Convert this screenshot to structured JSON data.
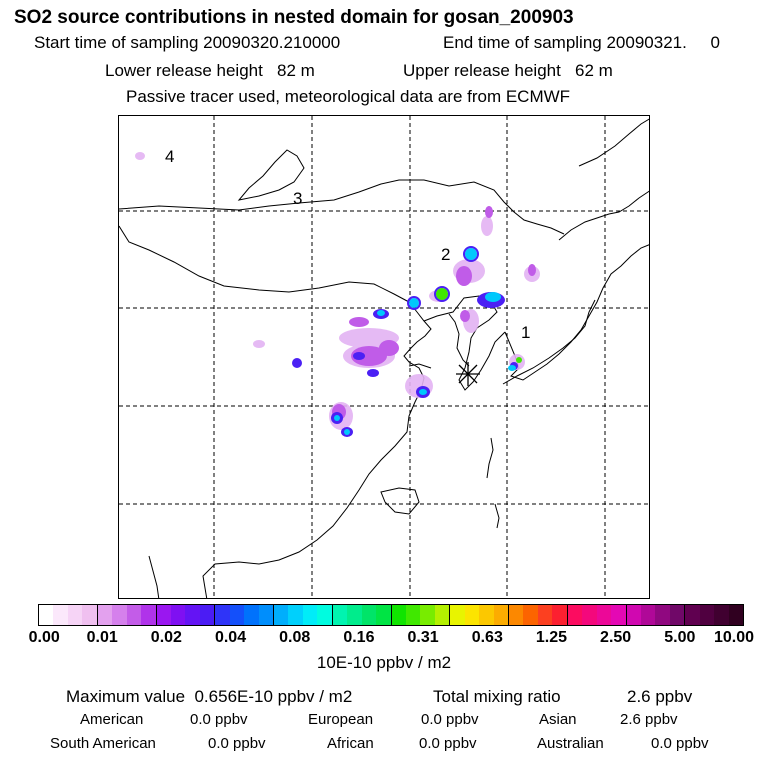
{
  "header": {
    "title": "SO2 source contributions in nested domain for gosan_200903",
    "start_label": "Start time of sampling 20090320.210000",
    "end_label": "End time of sampling 20090321.     0",
    "lower_label": "Lower release height   82 m",
    "upper_label": "Upper release height   62 m",
    "tracer_note": "Passive tracer used, meteorological data are from ECMWF"
  },
  "map": {
    "region_labels": [
      "1",
      "2",
      "3",
      "4"
    ],
    "station_marker": "gosan-station",
    "hotspots": [
      {
        "label": "2",
        "level": "0.04-0.16"
      },
      {
        "label": "1",
        "level": "0.08-0.31"
      }
    ]
  },
  "legend": {
    "ticks": [
      "0.00",
      "0.01",
      "0.02",
      "0.04",
      "0.08",
      "0.16",
      "0.31",
      "0.63",
      "1.25",
      "2.50",
      "5.00",
      "10.00"
    ],
    "colors": [
      "#ffffff",
      "#fbe8fb",
      "#f6d4f6",
      "#f0c0f0",
      "#e3a1ee",
      "#d580ec",
      "#c35ce8",
      "#b033ea",
      "#9a17f0",
      "#7f10f2",
      "#6414f4",
      "#4b1cf4",
      "#2f34f8",
      "#1450fa",
      "#0072fc",
      "#008efc",
      "#00aefc",
      "#00d0fc",
      "#00ecf8",
      "#00fce0",
      "#00f4b0",
      "#00ec8c",
      "#00e468",
      "#00e444",
      "#10e400",
      "#40e800",
      "#78ec00",
      "#b4f000",
      "#e8f400",
      "#fce400",
      "#fcc800",
      "#fcac00",
      "#fc8800",
      "#fc6400",
      "#fc4020",
      "#fc2030",
      "#fc0c60",
      "#f4087c",
      "#ec0898",
      "#e408b4",
      "#d008b0",
      "#b00898",
      "#900880",
      "#700868",
      "#600050",
      "#500040",
      "#400030",
      "#300020"
    ],
    "units": "10E-10 ppbv / m2"
  },
  "footer": {
    "max_label": "Maximum value  0.656E-10 ppbv / m2",
    "total_label": "Total mixing ratio",
    "total_value": "2.6 ppbv",
    "row1": [
      {
        "name": "American",
        "value": "0.0 ppbv"
      },
      {
        "name": "European",
        "value": "0.0 ppbv"
      },
      {
        "name": "Asian",
        "value": "2.6 ppbv"
      }
    ],
    "row2": [
      {
        "name": "South American",
        "value": "0.0 ppbv"
      },
      {
        "name": "African",
        "value": "0.0 ppbv"
      },
      {
        "name": "Australian",
        "value": "0.0 ppbv"
      }
    ]
  }
}
